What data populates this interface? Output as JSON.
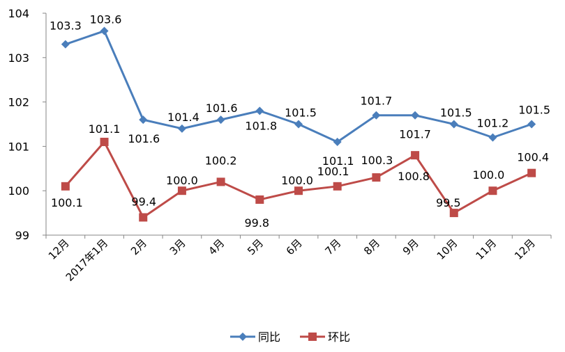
{
  "chart_data": {
    "type": "line",
    "categories": [
      "12月",
      "2017年1月",
      "2月",
      "3月",
      "4月",
      "5月",
      "6月",
      "7月",
      "8月",
      "9月",
      "10月",
      "11月",
      "12月"
    ],
    "series": [
      {
        "name": "同比",
        "color": "#4A7EBB",
        "marker": "diamond",
        "values": [
          103.3,
          103.6,
          101.6,
          101.4,
          101.6,
          101.8,
          101.5,
          101.1,
          101.7,
          101.7,
          101.5,
          101.2,
          101.5
        ],
        "labels": [
          "103.3",
          "103.6",
          "101.6",
          "101.4",
          "101.6",
          "101.8",
          "101.5",
          "101.1",
          "101.7",
          "101.7",
          "101.5",
          "101.2",
          "101.5"
        ]
      },
      {
        "name": "环比",
        "color": "#BE4B48",
        "marker": "square",
        "values": [
          100.1,
          101.1,
          99.4,
          100.0,
          100.2,
          99.8,
          100.0,
          100.1,
          100.3,
          100.8,
          99.5,
          100.0,
          100.4
        ],
        "labels": [
          "100.1",
          "101.1",
          "99.4",
          "100.0",
          "100.2",
          "99.8",
          "100.0",
          "100.1",
          "100.3",
          "100.8",
          "99.5",
          "100.0",
          "100.4"
        ]
      }
    ],
    "yticks": [
      "99",
      "100",
      "101",
      "102",
      "103",
      "104"
    ],
    "ylim": [
      99,
      104
    ],
    "title": "",
    "xlabel": "",
    "ylabel": "",
    "grid": false,
    "legend": "bottom-center"
  }
}
